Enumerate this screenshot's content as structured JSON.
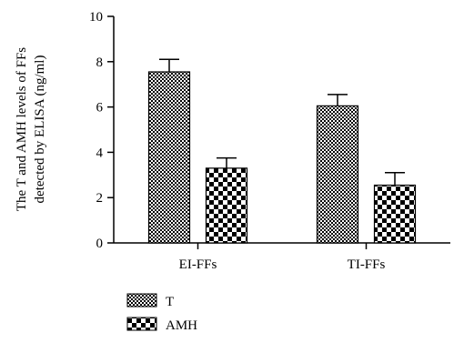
{
  "chart_data": {
    "type": "bar",
    "ylabel_line1": "The T and AMH levels of FFs",
    "ylabel_line2": "detected by ELISA (ng/ml)",
    "xlabel": "",
    "ylim": [
      0,
      10
    ],
    "yticks": [
      "0",
      "2",
      "4",
      "6",
      "8",
      "10"
    ],
    "categories": [
      "EI-FFs",
      "TI-FFs"
    ],
    "series": [
      {
        "name": "T",
        "values": [
          7.55,
          6.05
        ],
        "errors": [
          0.55,
          0.5
        ],
        "pattern": "fine-dots"
      },
      {
        "name": "AMH",
        "values": [
          3.3,
          2.55
        ],
        "errors": [
          0.45,
          0.55
        ],
        "pattern": "checker"
      }
    ],
    "legend_position": "bottom-left",
    "grid": false
  }
}
